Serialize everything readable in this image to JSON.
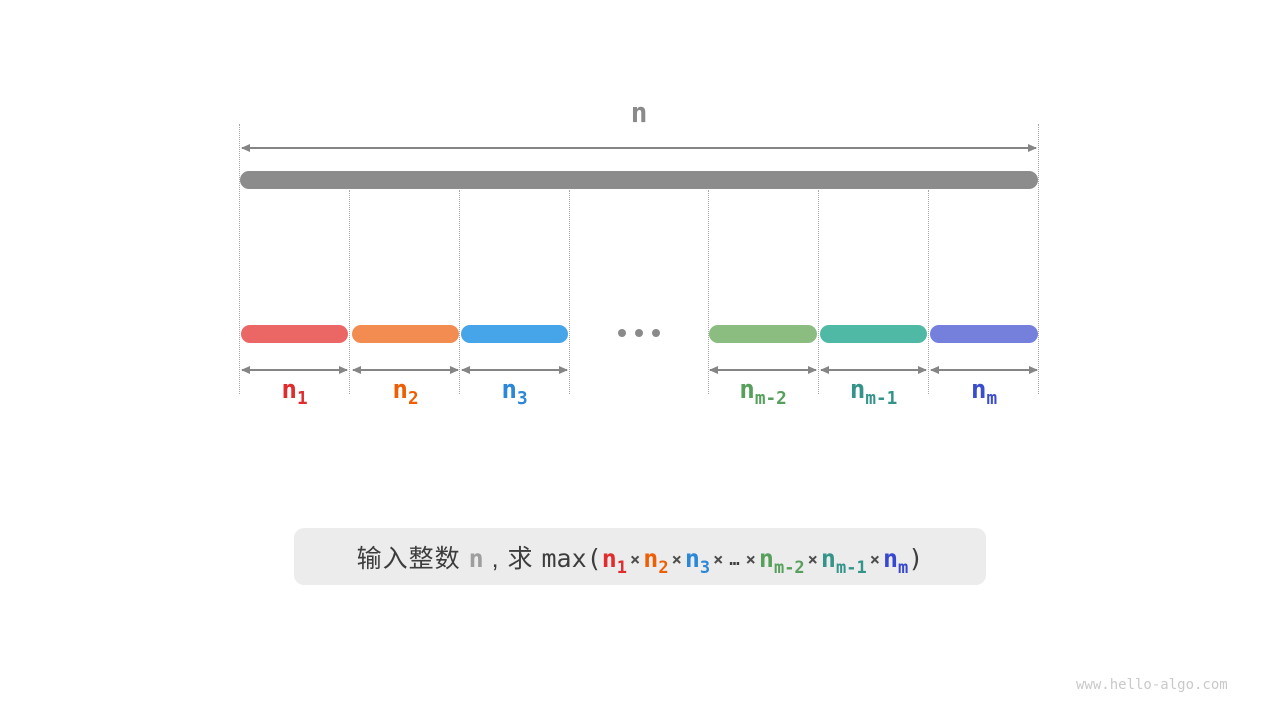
{
  "diagram": {
    "top_label": "n",
    "top_label_color": "#8a8a8a",
    "total_bar_color": "#8c8c8c",
    "arrow_color": "#858585",
    "dotted_line_color": "#a8a8a8",
    "ellipsis_color": "#8a8a8a",
    "segments": [
      {
        "label_base": "n",
        "label_sub": "1",
        "bar_color": "#eb6766",
        "label_color": "#e02c2c"
      },
      {
        "label_base": "n",
        "label_sub": "2",
        "bar_color": "#f28c50",
        "label_color": "#ee5f05"
      },
      {
        "label_base": "n",
        "label_sub": "3",
        "bar_color": "#46a4e9",
        "label_color": "#2b87d8"
      },
      {
        "label_base": "n",
        "label_sub": "m-2",
        "bar_color": "#8bbd80",
        "label_color": "#57a05c"
      },
      {
        "label_base": "n",
        "label_sub": "m-1",
        "bar_color": "#4fb9a6",
        "label_color": "#35948a"
      },
      {
        "label_base": "n",
        "label_sub": "m",
        "bar_color": "#757fdc",
        "label_color": "#3a4cd0"
      }
    ]
  },
  "formula": {
    "box_bg": "#ececec",
    "parts": [
      {
        "text": "输入整数 ",
        "kind": "cjk",
        "color": "#3d3d3d"
      },
      {
        "text": "n",
        "kind": "var",
        "color": "#9e9e9e"
      },
      {
        "text": " , 求 ",
        "kind": "cjk",
        "color": "#3d3d3d"
      },
      {
        "text": "max(",
        "kind": "mono",
        "color": "#3d3d3d"
      },
      {
        "text": "n",
        "sub": "1",
        "kind": "var",
        "color": "#e02c2c"
      },
      {
        "text": "×",
        "kind": "op",
        "color": "#4d4d4d"
      },
      {
        "text": "n",
        "sub": "2",
        "kind": "var",
        "color": "#ee5f05"
      },
      {
        "text": "×",
        "kind": "op",
        "color": "#4d4d4d"
      },
      {
        "text": "n",
        "sub": "3",
        "kind": "var",
        "color": "#2b87d8"
      },
      {
        "text": "×",
        "kind": "op",
        "color": "#4d4d4d"
      },
      {
        "text": "…",
        "kind": "op",
        "color": "#3d3d3d"
      },
      {
        "text": "×",
        "kind": "op",
        "color": "#4d4d4d"
      },
      {
        "text": "n",
        "sub": "m-2",
        "kind": "var",
        "color": "#57a05c"
      },
      {
        "text": "×",
        "kind": "op",
        "color": "#4d4d4d"
      },
      {
        "text": "n",
        "sub": "m-1",
        "kind": "var",
        "color": "#35948a"
      },
      {
        "text": "×",
        "kind": "op",
        "color": "#4d4d4d"
      },
      {
        "text": "n",
        "sub": "m",
        "kind": "var",
        "color": "#3647d0"
      },
      {
        "text": ")",
        "kind": "mono",
        "color": "#3d3d3d"
      }
    ]
  },
  "watermark": "www.hello-algo.com"
}
